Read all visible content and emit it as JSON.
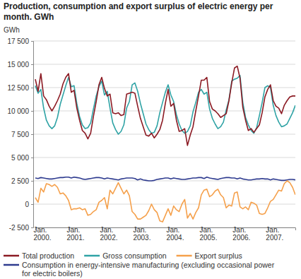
{
  "chart_data": {
    "type": "line",
    "title": "Production, consumption and export surplus of electric energy per month. GWh",
    "y_label": "GWh",
    "categories": [
      "Jan. 2000.",
      null,
      null,
      null,
      null,
      null,
      null,
      null,
      null,
      null,
      null,
      null,
      "Jan. 2001.",
      null,
      null,
      null,
      null,
      null,
      null,
      null,
      null,
      null,
      null,
      null,
      "Jan. 2002.",
      null,
      null,
      null,
      null,
      null,
      null,
      null,
      null,
      null,
      null,
      null,
      "Jan. 2003.",
      null,
      null,
      null,
      null,
      null,
      null,
      null,
      null,
      null,
      null,
      null,
      "Jan. 2004.",
      null,
      null,
      null,
      null,
      null,
      null,
      null,
      null,
      null,
      null,
      null,
      "Jan. 2005.",
      null,
      null,
      null,
      null,
      null,
      null,
      null,
      null,
      null,
      null,
      null,
      "Jan. 2006.",
      null,
      null,
      null,
      null,
      null,
      null,
      null,
      null,
      null,
      null,
      null,
      "Jan. 2007.",
      null,
      null,
      null,
      null,
      null,
      null,
      null,
      null,
      null,
      null
    ],
    "series": [
      {
        "name": "Total production",
        "color": "#8b1a23",
        "values": [
          13400,
          12100,
          14000,
          11600,
          11200,
          10500,
          10000,
          10500,
          11100,
          11800,
          12900,
          13600,
          14000,
          12000,
          12200,
          10300,
          9000,
          7900,
          7600,
          7000,
          7600,
          9400,
          11000,
          12800,
          13600,
          12400,
          11600,
          11800,
          9800,
          9700,
          9800,
          9500,
          9600,
          11800,
          11900,
          12000,
          11900,
          10500,
          9200,
          8300,
          7400,
          7300,
          7600,
          7100,
          7500,
          8000,
          9000,
          10800,
          12300,
          10500,
          10800,
          9000,
          7800,
          7900,
          8100,
          6300,
          7400,
          8300,
          10000,
          11600,
          13300,
          13300,
          13600,
          11000,
          10200,
          10000,
          9700,
          9300,
          9500,
          9700,
          11100,
          13000,
          14600,
          14800,
          13500,
          10400,
          9000,
          7900,
          8100,
          7700,
          8100,
          8500,
          9800,
          11500,
          12300,
          12800,
          11100,
          10500,
          10300,
          9700,
          10600,
          11100,
          11500,
          11600,
          11600
        ]
      },
      {
        "name": "Gross consumption",
        "color": "#2fa3a5",
        "values": [
          12700,
          11900,
          12300,
          10300,
          9000,
          8400,
          8100,
          8400,
          9300,
          10700,
          11700,
          12700,
          13600,
          12600,
          12700,
          10800,
          9400,
          8500,
          8100,
          8200,
          8700,
          10200,
          11600,
          12600,
          13200,
          11700,
          12100,
          10300,
          8700,
          8000,
          7500,
          7800,
          8500,
          10300,
          11000,
          12800,
          13000,
          12100,
          10800,
          9700,
          8600,
          8000,
          7600,
          7700,
          8400,
          9800,
          10900,
          12000,
          12800,
          11700,
          11000,
          9600,
          8600,
          7900,
          7600,
          7800,
          8400,
          9900,
          10900,
          12000,
          12300,
          11800,
          12000,
          10200,
          9200,
          8600,
          8100,
          8300,
          8800,
          10100,
          11200,
          13200,
          13400,
          13500,
          13800,
          10900,
          9300,
          8500,
          7900,
          7600,
          8200,
          9500,
          10900,
          12500,
          12700,
          12500,
          10600,
          9500,
          8800,
          8300,
          8400,
          8600,
          9200,
          9800,
          10600
        ]
      },
      {
        "name": "Export surplus",
        "color": "#f5a04b",
        "values": [
          700,
          200,
          1700,
          1300,
          2200,
          2100,
          1900,
          2100,
          1800,
          1100,
          1200,
          900,
          400,
          -600,
          -500,
          -500,
          -400,
          -600,
          -500,
          -1200,
          -1100,
          -800,
          -600,
          200,
          400,
          700,
          -500,
          1500,
          1100,
          1700,
          2300,
          1700,
          1100,
          1500,
          900,
          -800,
          -1100,
          -1600,
          -1600,
          -1400,
          -1200,
          -700,
          0,
          -600,
          -900,
          -1800,
          -1900,
          -1200,
          -500,
          -1200,
          -200,
          -600,
          -800,
          0,
          500,
          -1500,
          -1000,
          -1600,
          -900,
          -400,
          1000,
          1500,
          1600,
          800,
          1000,
          1400,
          1600,
          1000,
          700,
          -400,
          -100,
          -200,
          1200,
          1300,
          -300,
          -500,
          -300,
          -600,
          200,
          100,
          -100,
          -1000,
          -1100,
          -1000,
          -400,
          300,
          500,
          1000,
          1500,
          1400,
          2200,
          2500,
          2300,
          1800,
          1000
        ]
      },
      {
        "name": "Consumption in energy-intensive manufacturing (excluding occasional power for electric boilers)",
        "color": "#2e3b8f",
        "values": [
          2800,
          2750,
          2850,
          2800,
          2750,
          2700,
          2700,
          2750,
          2800,
          2850,
          2850,
          2900,
          2900,
          2800,
          2900,
          2850,
          2800,
          2700,
          2650,
          2700,
          2750,
          2800,
          2850,
          2850,
          2800,
          2700,
          2800,
          2750,
          2700,
          2650,
          2600,
          2700,
          2750,
          2800,
          2800,
          2800,
          2750,
          2600,
          2700,
          2600,
          2550,
          2500,
          2500,
          2550,
          2650,
          2700,
          2750,
          2800,
          2800,
          2700,
          2800,
          2750,
          2700,
          2650,
          2650,
          2700,
          2750,
          2800,
          2800,
          2850,
          2850,
          2750,
          2900,
          2800,
          2750,
          2700,
          2650,
          2750,
          2800,
          2850,
          2850,
          2800,
          2800,
          2700,
          2800,
          2700,
          2650,
          2600,
          2600,
          2650,
          2700,
          2700,
          2750,
          2700,
          2700,
          2600,
          2700,
          2650,
          2600,
          2550,
          2550,
          2600,
          2650,
          2650,
          2600
        ]
      }
    ],
    "ylim": [
      -2500,
      17500
    ],
    "yticks": [
      {
        "value": -2500,
        "label": "-2 500"
      },
      0,
      {
        "value": 2500,
        "label": "2 500"
      },
      {
        "value": 5000,
        "label": "5 000"
      },
      {
        "value": 7500,
        "label": "7 500"
      },
      {
        "value": 10000,
        "label": "10 000"
      },
      {
        "value": 12500,
        "label": "12 500"
      },
      {
        "value": 15000,
        "label": "15 000"
      },
      {
        "value": 17500,
        "label": "17 500"
      }
    ],
    "grid": true,
    "legend": "bottom"
  }
}
